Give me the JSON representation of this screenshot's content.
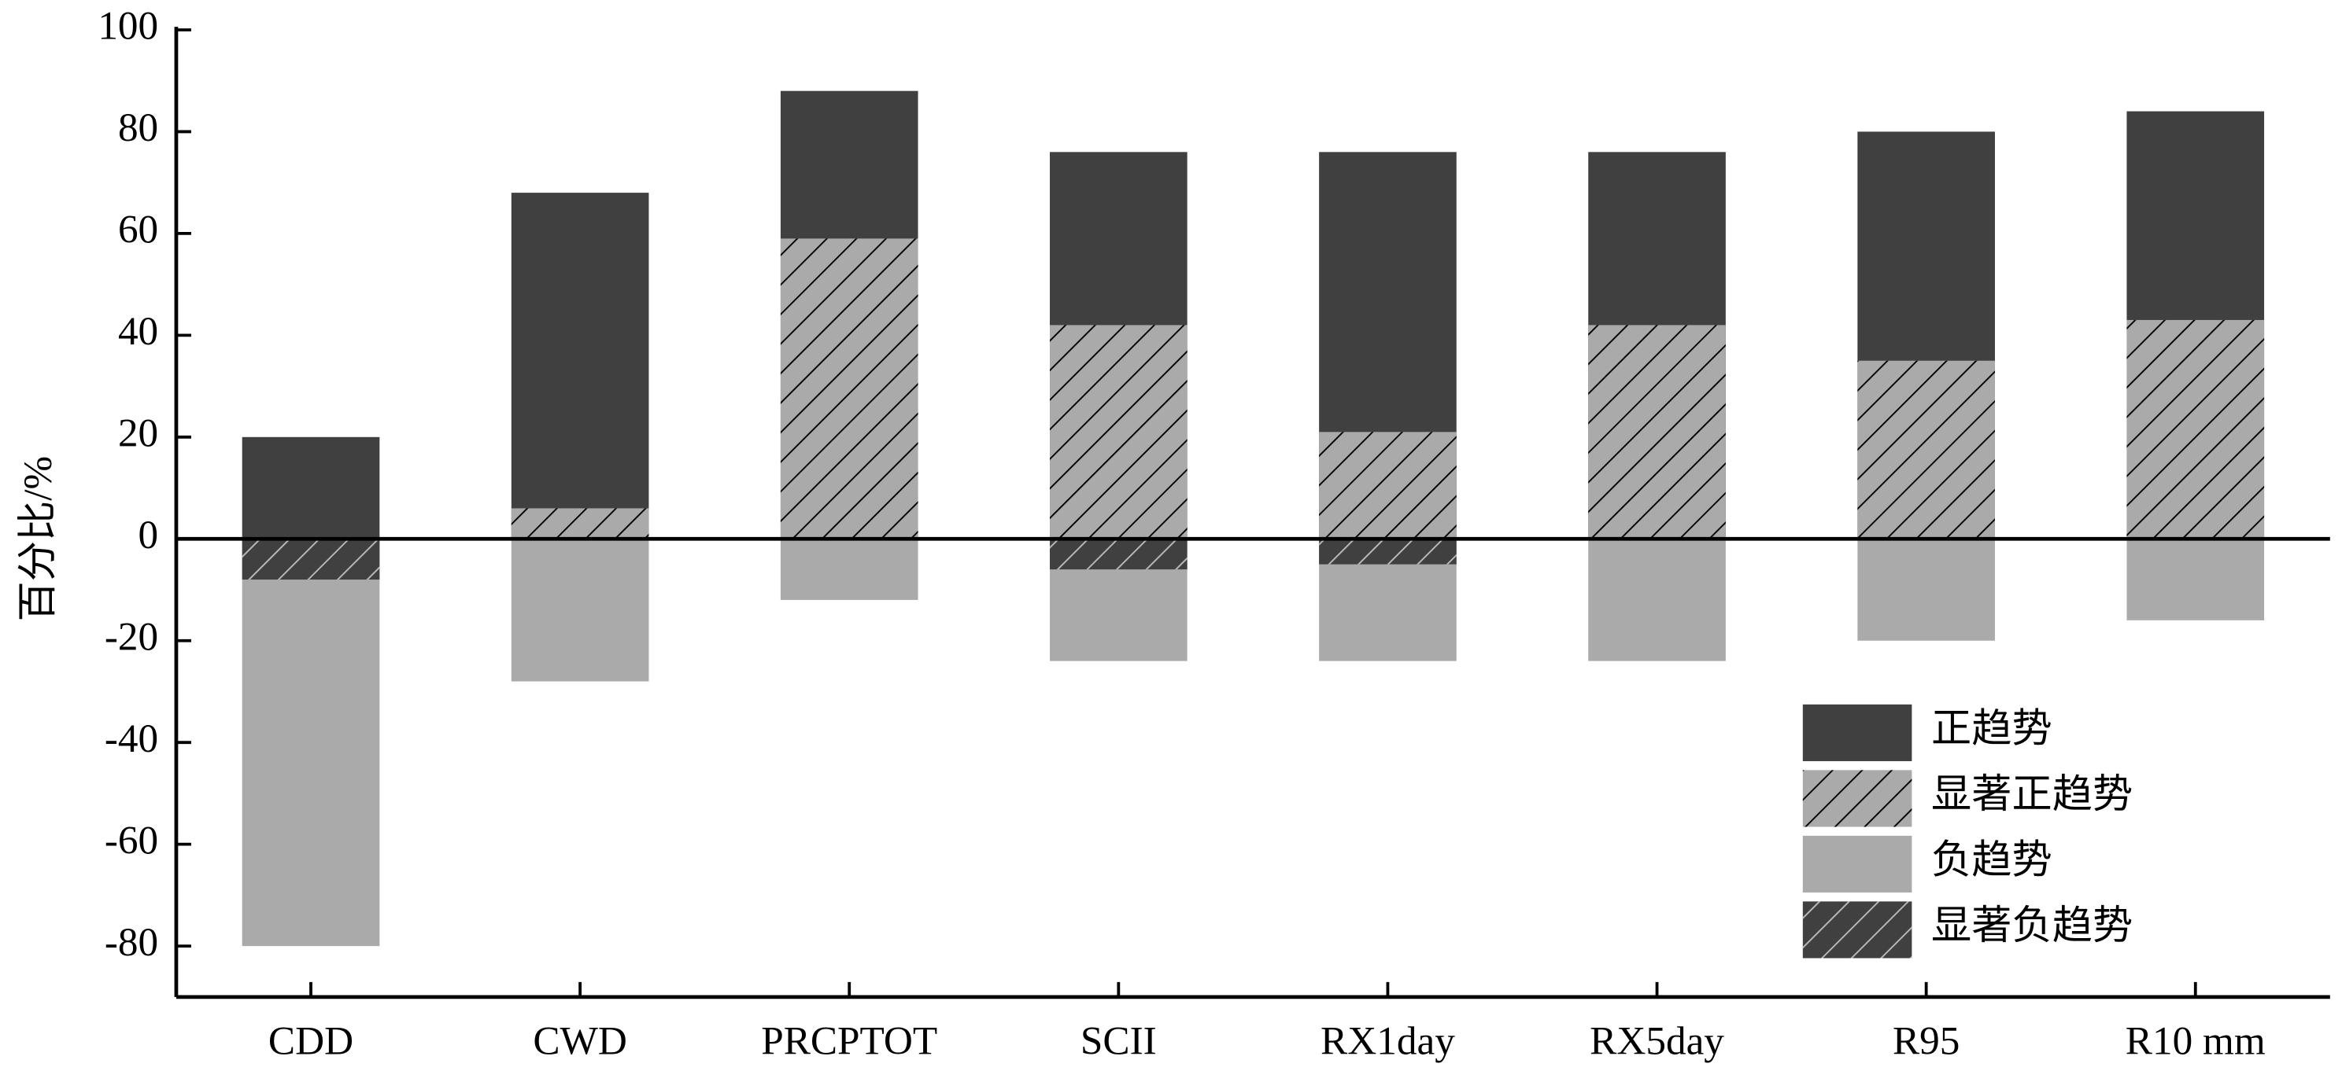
{
  "chart_data": {
    "type": "bar",
    "ylabel": "百分比/%",
    "categories": [
      "CDD",
      "CWD",
      "PRCPTOT",
      "SCII",
      "RX1day",
      "RX5day",
      "R95",
      "R10 mm"
    ],
    "series": [
      {
        "name": "正趋势",
        "color": "#404040",
        "values": [
          20,
          68,
          88,
          76,
          76,
          76,
          80,
          84
        ]
      },
      {
        "name": "显著正趋势",
        "color": "#aaaaaa",
        "hatch": true,
        "values": [
          0,
          6,
          59,
          42,
          21,
          42,
          35,
          43
        ]
      },
      {
        "name": "负趋势",
        "color": "#aaaaaa",
        "values": [
          -80,
          -28,
          -12,
          -24,
          -24,
          -24,
          -20,
          -16
        ]
      },
      {
        "name": "显著负趋势",
        "color": "#404040",
        "hatch": true,
        "values": [
          -8,
          0,
          0,
          -6,
          -5,
          0,
          0,
          0
        ]
      }
    ],
    "ylim": [
      -90,
      100
    ],
    "yticks": [
      -80,
      -60,
      -40,
      -20,
      0,
      20,
      40,
      60,
      80,
      100
    ],
    "legend": "lower right"
  }
}
